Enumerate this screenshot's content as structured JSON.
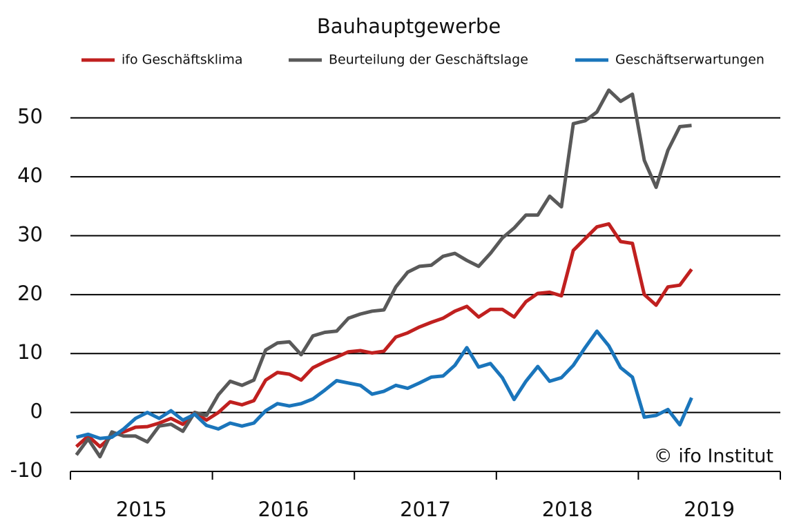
{
  "chart_data": {
    "type": "line",
    "title": "Bauhauptgewerbe",
    "annotation": "© ifo Institut",
    "x": [
      2015.042,
      2015.125,
      2015.208,
      2015.292,
      2015.375,
      2015.458,
      2015.542,
      2015.625,
      2015.708,
      2015.792,
      2015.875,
      2015.958,
      2016.042,
      2016.125,
      2016.208,
      2016.292,
      2016.375,
      2016.458,
      2016.542,
      2016.625,
      2016.708,
      2016.792,
      2016.875,
      2016.958,
      2017.042,
      2017.125,
      2017.208,
      2017.292,
      2017.375,
      2017.458,
      2017.542,
      2017.625,
      2017.708,
      2017.792,
      2017.875,
      2017.958,
      2018.042,
      2018.125,
      2018.208,
      2018.292,
      2018.375,
      2018.458,
      2018.542,
      2018.625,
      2018.708,
      2018.792,
      2018.875,
      2018.958,
      2019.042,
      2019.125,
      2019.208,
      2019.292,
      2019.375
    ],
    "series": [
      {
        "name": "ifo Geschäftsklima",
        "color": "#c0201f",
        "values": [
          -5.8,
          -4,
          -5.8,
          -4,
          -3.3,
          -2.5,
          -2.4,
          -1.8,
          -1,
          -2,
          0,
          -1.3,
          0,
          1.8,
          1.3,
          2,
          5.5,
          6.8,
          6.5,
          5.5,
          7.6,
          8.6,
          9.4,
          10.3,
          10.5,
          10.1,
          10.4,
          12.8,
          13.5,
          14.5,
          15.3,
          16,
          17.2,
          18,
          16.2,
          17.5,
          17.5,
          16.2,
          18.8,
          20.2,
          20.4,
          19.8,
          27.5,
          29.5,
          31.5,
          32,
          29,
          28.7,
          20,
          18.2,
          21.3,
          21.6,
          24.3
        ]
      },
      {
        "name": "Beurteilung der Geschäftslage",
        "color": "#595959",
        "values": [
          -7.2,
          -4.5,
          -7.5,
          -3.3,
          -4,
          -4,
          -5,
          -2.3,
          -2,
          -3.2,
          0,
          -0.5,
          3,
          5.3,
          4.6,
          5.5,
          10.6,
          11.8,
          12,
          9.8,
          13,
          13.6,
          13.8,
          16,
          16.7,
          17.2,
          17.4,
          21.3,
          23.8,
          24.8,
          25,
          26.5,
          27,
          25.8,
          24.8,
          27,
          29.6,
          31.3,
          33.5,
          33.5,
          36.7,
          34.9,
          49,
          49.5,
          51,
          54.7,
          52.8,
          54,
          42.8,
          38.2,
          44.5,
          48.5,
          48.7
        ]
      },
      {
        "name": "Geschäftserwartungen",
        "color": "#1a75bb",
        "values": [
          -4.2,
          -3.7,
          -4.4,
          -4.2,
          -2.8,
          -1,
          0,
          -1,
          0.3,
          -1.3,
          -0.3,
          -2.2,
          -2.8,
          -1.8,
          -2.3,
          -1.8,
          0.3,
          1.5,
          1.1,
          1.5,
          2.3,
          3.8,
          5.4,
          5,
          4.6,
          3.1,
          3.6,
          4.6,
          4.1,
          5,
          6,
          6.2,
          8,
          11,
          7.7,
          8.3,
          5.9,
          2.2,
          5.3,
          7.8,
          5.3,
          5.9,
          8,
          11,
          13.8,
          11.3,
          7.6,
          6,
          -0.8,
          -0.5,
          0.5,
          -2.1,
          2.5
        ]
      }
    ],
    "xlim": [
      2015,
      2020
    ],
    "xticks": [
      2015,
      2016,
      2017,
      2018,
      2019,
      2020
    ],
    "xlabels": [
      {
        "value": 2015.5,
        "label": "2015"
      },
      {
        "value": 2016.5,
        "label": "2016"
      },
      {
        "value": 2017.5,
        "label": "2017"
      },
      {
        "value": 2018.5,
        "label": "2018"
      },
      {
        "value": 2019.5,
        "label": "2019"
      }
    ],
    "ylim": [
      -10,
      55
    ],
    "yticks": [
      -10,
      0,
      10,
      20,
      30,
      40,
      50
    ],
    "grid": true,
    "legend": "top"
  }
}
